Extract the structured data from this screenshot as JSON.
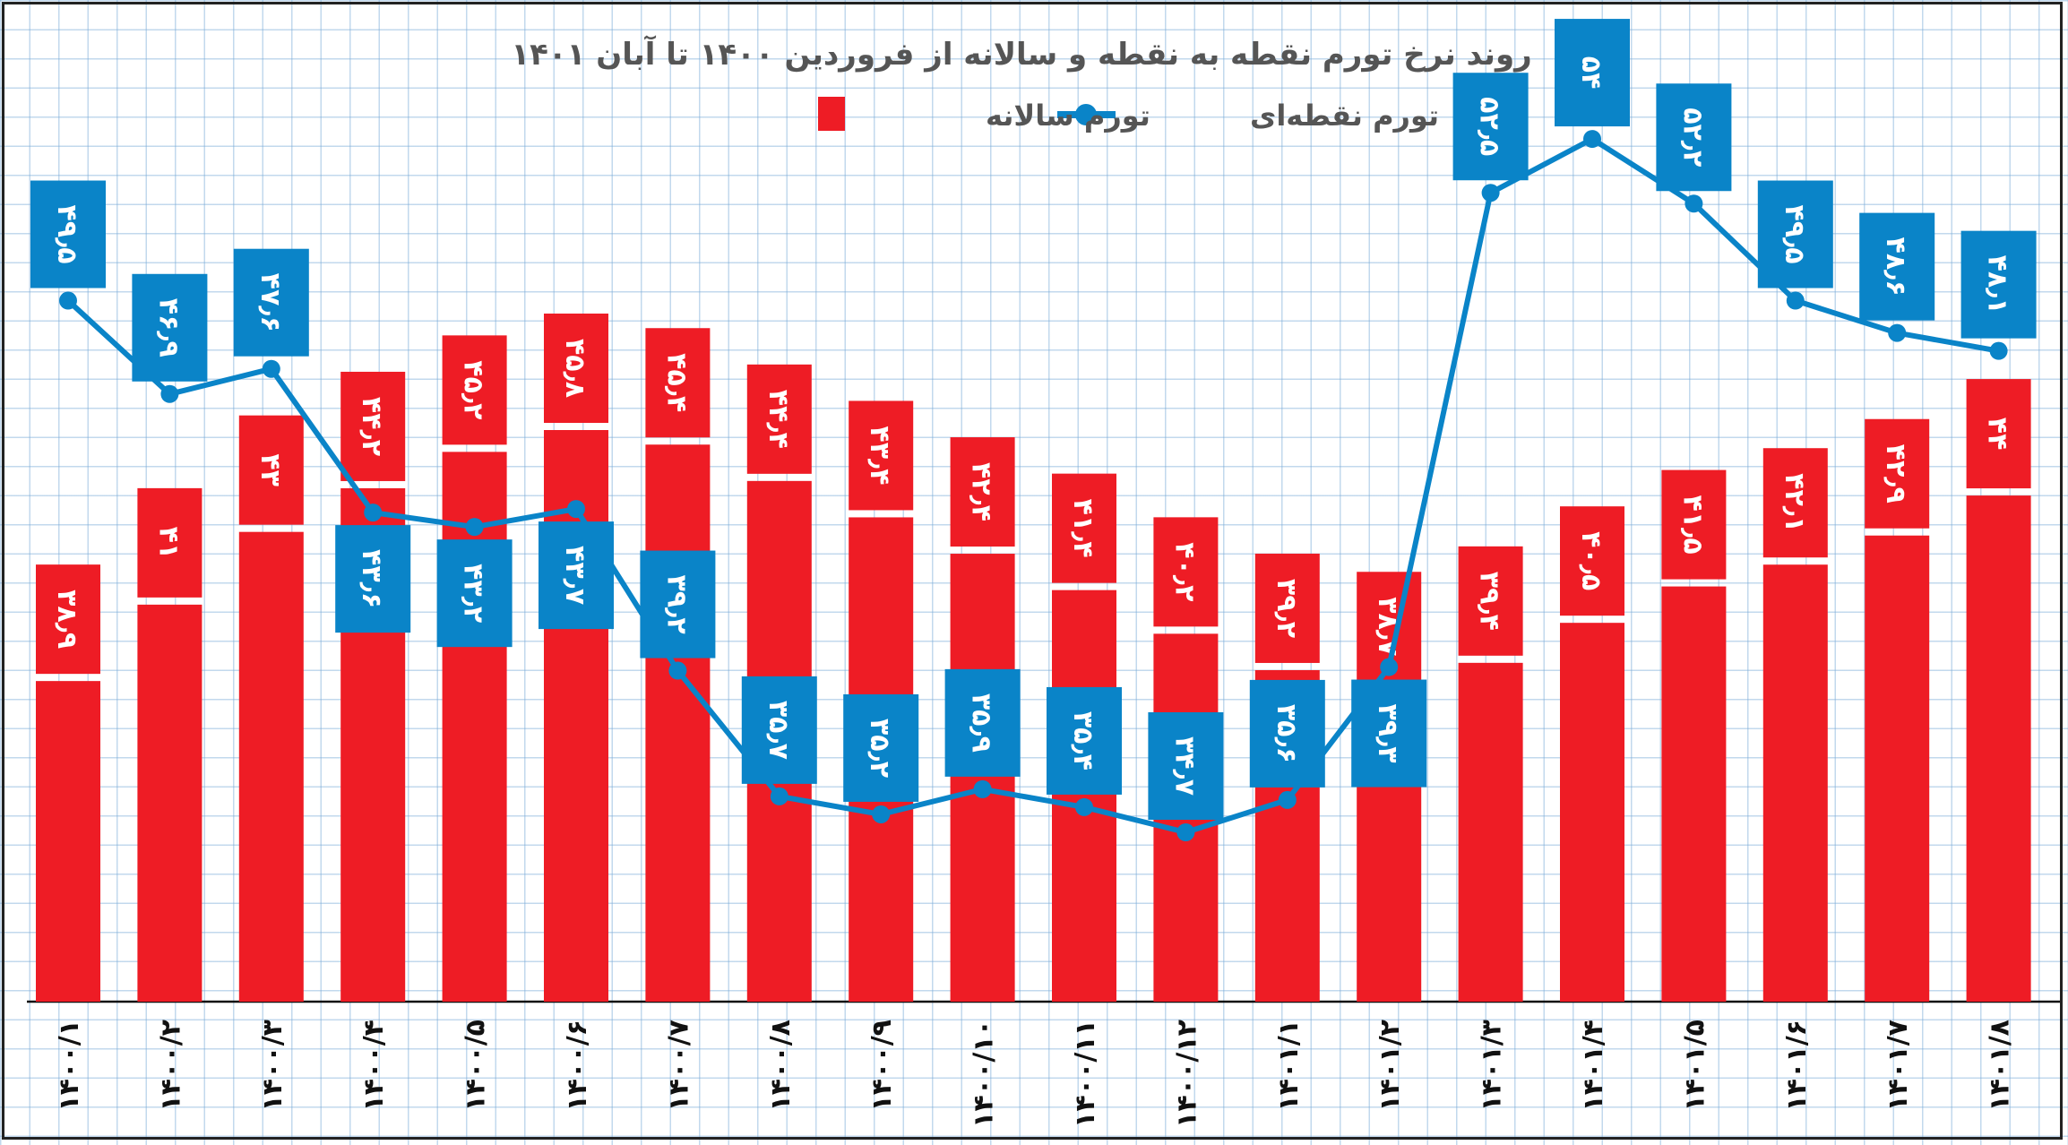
{
  "chart_data": {
    "type": "bar+line",
    "title": "روند نرخ تورم نقطه به نقطه و سالانه از فروردین ۱۴۰۰ تا آبان ۱۴۰۱",
    "xlabel": "",
    "ylabel": "",
    "grid": true,
    "legend_placement": "top-center",
    "categories": [
      "۱۴۰۰/۱",
      "۱۴۰۰/۲",
      "۱۴۰۰/۳",
      "۱۴۰۰/۴",
      "۱۴۰۰/۵",
      "۱۴۰۰/۶",
      "۱۴۰۰/۷",
      "۱۴۰۰/۸",
      "۱۴۰۰/۹",
      "۱۴۰۰/۱۰",
      "۱۴۰۰/۱۱",
      "۱۴۰۰/۱۲",
      "۱۴۰۱/۱",
      "۱۴۰۱/۲",
      "۱۴۰۱/۳",
      "۱۴۰۱/۴",
      "۱۴۰۱/۵",
      "۱۴۰۱/۶",
      "۱۴۰۱/۷",
      "۱۴۰۱/۸"
    ],
    "series": [
      {
        "name": "تورم سالانه",
        "type": "bar",
        "color": "#ee1c25",
        "values": [
          38.9,
          41,
          43,
          44.2,
          45.2,
          45.8,
          45.4,
          44.4,
          43.4,
          42.4,
          41.4,
          40.2,
          39.2,
          38.7,
          39.4,
          40.5,
          41.5,
          42.1,
          42.9,
          44
        ]
      },
      {
        "name": "تورم نقطه‌ای",
        "type": "line",
        "color": "#0a84c8",
        "values": [
          49.5,
          46.9,
          47.6,
          43.6,
          43.2,
          43.7,
          39.2,
          35.7,
          35.2,
          35.9,
          35.4,
          34.7,
          35.6,
          39.3,
          52.5,
          54,
          52.2,
          49.5,
          48.6,
          48.1
        ]
      }
    ]
  }
}
